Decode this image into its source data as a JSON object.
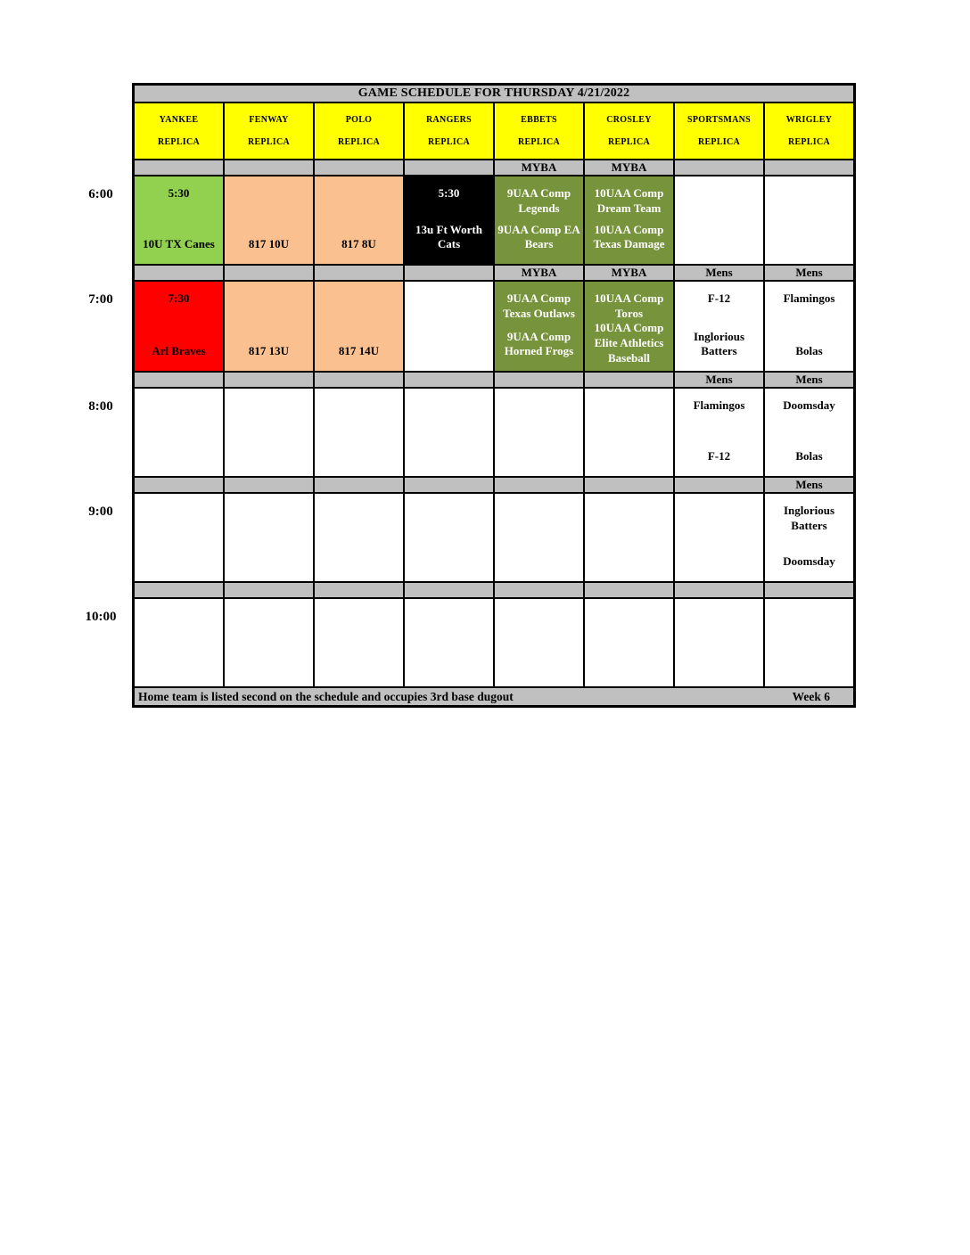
{
  "title": "GAME SCHEDULE FOR THURSDAY 4/21/2022",
  "columns": [
    {
      "line1": "YANKEE",
      "line2": "REPLICA"
    },
    {
      "line1": "FENWAY",
      "line2": "REPLICA"
    },
    {
      "line1": "POLO",
      "line2": "REPLICA"
    },
    {
      "line1": "RANGERS",
      "line2": "REPLICA"
    },
    {
      "line1": "EBBETS",
      "line2": "REPLICA"
    },
    {
      "line1": "CROSLEY",
      "line2": "REPLICA"
    },
    {
      "line1": "SPORTSMANS",
      "line2": "REPLICA"
    },
    {
      "line1": "WRIGLEY",
      "line2": "REPLICA"
    }
  ],
  "times": [
    "6:00",
    "7:00",
    "8:00",
    "9:00",
    "10:00"
  ],
  "separators": [
    [
      "",
      "",
      "",
      "",
      "MYBA",
      "MYBA",
      "",
      ""
    ],
    [
      "",
      "",
      "",
      "",
      "MYBA",
      "MYBA",
      "Mens",
      "Mens"
    ],
    [
      "",
      "",
      "",
      "",
      "",
      "",
      "Mens",
      "Mens"
    ],
    [
      "",
      "",
      "",
      "",
      "",
      "",
      "",
      "Mens"
    ],
    [
      "",
      "",
      "",
      "",
      "",
      "",
      "",
      ""
    ]
  ],
  "rows": [
    {
      "time": "6:00",
      "cells": [
        {
          "bg": "green",
          "top": "5:30",
          "bottom": "10U TX Canes"
        },
        {
          "bg": "peach",
          "top": "",
          "bottom": "817 10U"
        },
        {
          "bg": "peach",
          "top": "",
          "bottom": "817 8U"
        },
        {
          "bg": "black",
          "top": "5:30",
          "bottom": "13u Ft Worth Cats"
        },
        {
          "bg": "olive",
          "top": "9UAA Comp Legends",
          "bottom": "9UAA Comp EA Bears"
        },
        {
          "bg": "olive",
          "top": "10UAA Comp Dream Team",
          "bottom": "10UAA Comp Texas Damage"
        },
        {
          "bg": "white",
          "top": "",
          "bottom": ""
        },
        {
          "bg": "white",
          "top": "",
          "bottom": ""
        }
      ]
    },
    {
      "time": "7:00",
      "cells": [
        {
          "bg": "red",
          "top": "7:30",
          "bottom": "Arl Braves"
        },
        {
          "bg": "peach",
          "top": "",
          "bottom": "817 13U"
        },
        {
          "bg": "peach",
          "top": "",
          "bottom": "817 14U"
        },
        {
          "bg": "white",
          "top": "",
          "bottom": ""
        },
        {
          "bg": "olive",
          "top": "9UAA Comp Texas Outlaws",
          "bottom": "9UAA Comp Horned Frogs"
        },
        {
          "bg": "olive",
          "top": "10UAA Comp Toros",
          "bottom": "10UAA Comp Elite Athletics Baseball"
        },
        {
          "bg": "white",
          "top": "F-12",
          "bottom": "Inglorious Batters"
        },
        {
          "bg": "white",
          "top": "Flamingos",
          "bottom": "Bolas"
        }
      ]
    },
    {
      "time": "8:00",
      "cells": [
        {
          "bg": "white",
          "top": "",
          "bottom": ""
        },
        {
          "bg": "white",
          "top": "",
          "bottom": ""
        },
        {
          "bg": "white",
          "top": "",
          "bottom": ""
        },
        {
          "bg": "white",
          "top": "",
          "bottom": ""
        },
        {
          "bg": "white",
          "top": "",
          "bottom": ""
        },
        {
          "bg": "white",
          "top": "",
          "bottom": ""
        },
        {
          "bg": "white",
          "top": "Flamingos",
          "bottom": "F-12"
        },
        {
          "bg": "white",
          "top": "Doomsday",
          "bottom": "Bolas"
        }
      ]
    },
    {
      "time": "9:00",
      "cells": [
        {
          "bg": "white",
          "top": "",
          "bottom": ""
        },
        {
          "bg": "white",
          "top": "",
          "bottom": ""
        },
        {
          "bg": "white",
          "top": "",
          "bottom": ""
        },
        {
          "bg": "white",
          "top": "",
          "bottom": ""
        },
        {
          "bg": "white",
          "top": "",
          "bottom": ""
        },
        {
          "bg": "white",
          "top": "",
          "bottom": ""
        },
        {
          "bg": "white",
          "top": "",
          "bottom": ""
        },
        {
          "bg": "white",
          "top": "Inglorious Batters",
          "bottom": "Doomsday"
        }
      ]
    },
    {
      "time": "10:00",
      "cells": [
        {
          "bg": "white",
          "top": "",
          "bottom": ""
        },
        {
          "bg": "white",
          "top": "",
          "bottom": ""
        },
        {
          "bg": "white",
          "top": "",
          "bottom": ""
        },
        {
          "bg": "white",
          "top": "",
          "bottom": ""
        },
        {
          "bg": "white",
          "top": "",
          "bottom": ""
        },
        {
          "bg": "white",
          "top": "",
          "bottom": ""
        },
        {
          "bg": "white",
          "top": "",
          "bottom": ""
        },
        {
          "bg": "white",
          "top": "",
          "bottom": ""
        }
      ]
    }
  ],
  "footer": {
    "note": "Home team is listed second on the schedule and occupies 3rd base dugout",
    "week": "Week 6"
  },
  "colors": {
    "green": "#92D050",
    "peach": "#FAC090",
    "red": "#FF0000",
    "olive": "#77933C",
    "black": "#000000",
    "white": "#FFFFFF",
    "gray": "#C0C0C0",
    "yellow": "#FFFF00"
  }
}
